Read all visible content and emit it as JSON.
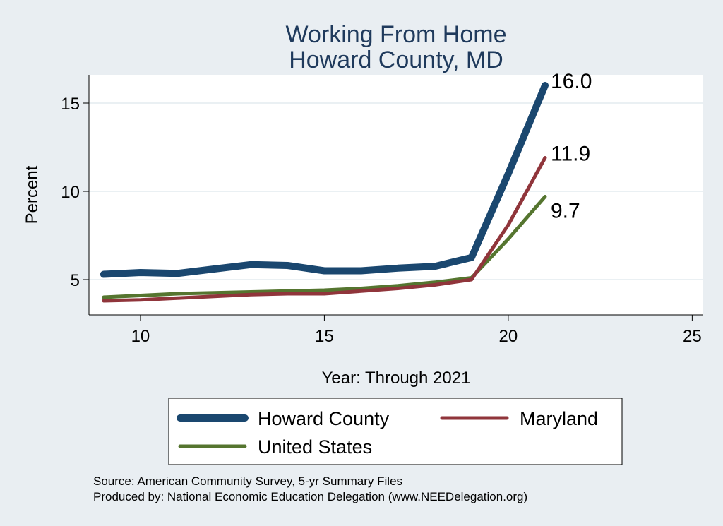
{
  "chart_data": {
    "type": "line",
    "title": [
      "Working From Home",
      "Howard County, MD"
    ],
    "xlabel": "Year: Through 2021",
    "ylabel": "Percent",
    "xlim": [
      8.6,
      25.3
    ],
    "ylim": [
      3.0,
      16.6
    ],
    "xticks": [
      10,
      15,
      20,
      25
    ],
    "yticks": [
      5,
      10,
      15
    ],
    "grid": "horizontal",
    "legend_position": "bottom",
    "x": [
      9,
      10,
      11,
      12,
      13,
      14,
      15,
      16,
      17,
      18,
      19,
      20,
      21
    ],
    "series": [
      {
        "name": "Howard County",
        "color": "#1a476f",
        "width": 10,
        "values": [
          5.3,
          5.4,
          5.35,
          5.6,
          5.85,
          5.8,
          5.5,
          5.5,
          5.65,
          5.75,
          6.25,
          11.0,
          16.0
        ],
        "end_label": "16.0"
      },
      {
        "name": "Maryland",
        "color": "#90353b",
        "width": 5,
        "values": [
          3.8,
          3.85,
          3.95,
          4.05,
          4.15,
          4.2,
          4.2,
          4.35,
          4.5,
          4.7,
          5.0,
          8.1,
          11.9
        ],
        "end_label": "11.9"
      },
      {
        "name": "United States",
        "color": "#55752f",
        "width": 5,
        "values": [
          4.0,
          4.1,
          4.2,
          4.25,
          4.3,
          4.35,
          4.4,
          4.5,
          4.65,
          4.85,
          5.1,
          7.3,
          9.7
        ],
        "end_label": "9.7"
      }
    ]
  },
  "footnotes": [
    "Source: American Community Survey, 5-yr Summary Files",
    "Produced by: National Economic Education Delegation (www.NEEDelegation.org)"
  ]
}
